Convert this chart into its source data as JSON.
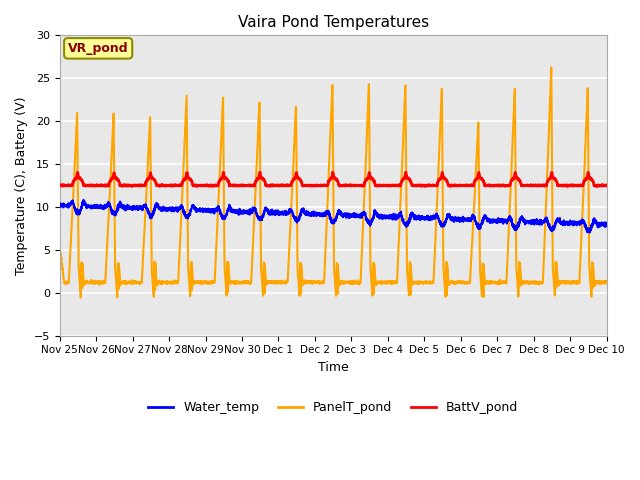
{
  "title": "Vaira Pond Temperatures",
  "xlabel": "Time",
  "ylabel": "Temperature (C), Battery (V)",
  "ylim": [
    -5,
    30
  ],
  "xtick_labels": [
    "Nov 25",
    "Nov 26",
    "Nov 27",
    "Nov 28",
    "Nov 29",
    "Nov 30",
    "Dec 1",
    "Dec 2",
    "Dec 3",
    "Dec 4",
    "Dec 5",
    "Dec 6",
    "Dec 7",
    "Dec 8",
    "Dec 9",
    "Dec 10"
  ],
  "legend_labels": [
    "Water_temp",
    "PanelT_pond",
    "BattV_pond"
  ],
  "legend_colors": [
    "blue",
    "orange",
    "red"
  ],
  "annotation_text": "VR_pond",
  "annotation_box_color": "#FFFF99",
  "annotation_box_edge": "#8B8B00",
  "bg_color": "#E8E8E8",
  "grid_color": "white",
  "water_color": "blue",
  "panel_color": "orange",
  "batt_color": "red",
  "water_lw": 1.5,
  "panel_lw": 1.5,
  "batt_lw": 2.0,
  "yticks": [
    -5,
    0,
    5,
    10,
    15,
    20,
    25,
    30
  ]
}
